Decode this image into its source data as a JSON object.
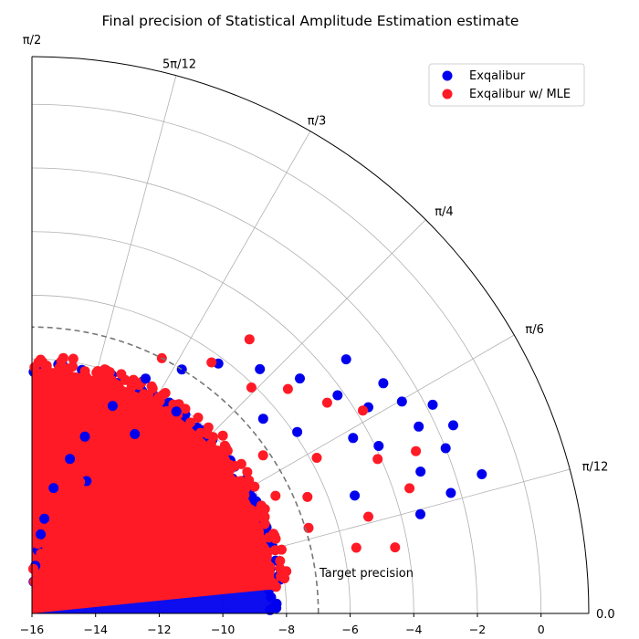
{
  "chart_data": {
    "type": "scatter",
    "projection": "polar-quarter",
    "title": "Final precision of Statistical Amplitude Estimation estimate",
    "radial_axis": {
      "scale": "log10",
      "range": [
        -16,
        1.5
      ],
      "ticks": [
        -16,
        -14,
        -12,
        -10,
        -8,
        -6,
        -4,
        -2,
        0
      ],
      "tick_labels": [
        "−16",
        "−14",
        "−12",
        "−10",
        "−8",
        "−6",
        "−4",
        "−2",
        "0"
      ]
    },
    "angular_axis": {
      "range_radians": [
        0,
        1.5708
      ],
      "tick_labels": [
        "0.0",
        "π/12",
        "π/6",
        "π/4",
        "π/3",
        "5π/12",
        "π/2"
      ]
    },
    "grid": true,
    "legend": {
      "placement": "top-right",
      "entries": [
        "Exqalibur",
        "Exqalibur w/ MLE"
      ]
    },
    "annotation": {
      "text": "Target precision",
      "radius": -7
    },
    "series": [
      {
        "name": "Exqalibur",
        "color": "#0000ee",
        "dense_region": {
          "r_range": [
            -16,
            -8.5
          ],
          "theta_range_radians": [
            0,
            1.5708
          ]
        },
        "scattered_points": [
          {
            "r": -3.0,
            "theta": 0.35
          },
          {
            "r": -2.5,
            "theta": 0.45
          },
          {
            "r": -2.0,
            "theta": 0.38
          },
          {
            "r": -1.5,
            "theta": 0.42
          },
          {
            "r": -2.3,
            "theta": 0.28
          },
          {
            "r": -3.6,
            "theta": 0.55
          },
          {
            "r": -4.2,
            "theta": 0.62
          },
          {
            "r": -4.8,
            "theta": 0.72
          },
          {
            "r": -5.5,
            "theta": 0.82
          },
          {
            "r": -2.8,
            "theta": 0.58
          },
          {
            "r": -3.3,
            "theta": 0.68
          },
          {
            "r": -6.2,
            "theta": 0.93
          },
          {
            "r": -7.0,
            "theta": 1.02
          },
          {
            "r": -7.8,
            "theta": 1.12
          },
          {
            "r": -9.0,
            "theta": 1.2
          },
          {
            "r": -10.2,
            "theta": 1.28
          },
          {
            "r": -11.0,
            "theta": 1.33
          },
          {
            "r": -12.0,
            "theta": 1.4
          },
          {
            "r": -13.0,
            "theta": 1.44
          },
          {
            "r": -14.0,
            "theta": 1.48
          },
          {
            "r": -15.0,
            "theta": 1.52
          },
          {
            "r": -14.5,
            "theta": 1.5
          },
          {
            "r": -13.5,
            "theta": 1.46
          },
          {
            "r": -1.2,
            "theta": 0.3
          },
          {
            "r": -1.8,
            "theta": 0.48
          },
          {
            "r": -2.6,
            "theta": 0.52
          },
          {
            "r": -3.9,
            "theta": 0.45
          },
          {
            "r": -4.5,
            "theta": 0.5
          },
          {
            "r": -5.2,
            "theta": 0.35
          },
          {
            "r": -3.4,
            "theta": 0.25
          },
          {
            "r": -6.5,
            "theta": 0.7
          },
          {
            "r": -5.9,
            "theta": 0.6
          },
          {
            "r": -8.2,
            "theta": 0.95
          },
          {
            "r": -9.5,
            "theta": 1.05
          },
          {
            "r": -11.5,
            "theta": 1.18
          }
        ]
      },
      {
        "name": "Exqalibur w/ MLE",
        "color": "#ff1a26",
        "dense_region": {
          "r_range": [
            -16,
            -8.3
          ],
          "theta_range_radians": [
            0.1,
            1.5708
          ]
        },
        "scattered_points": [
          {
            "r": -3.5,
            "theta": 0.32
          },
          {
            "r": -4.1,
            "theta": 0.42
          },
          {
            "r": -5.0,
            "theta": 0.28
          },
          {
            "r": -5.8,
            "theta": 0.5
          },
          {
            "r": -6.6,
            "theta": 0.4
          },
          {
            "r": -4.6,
            "theta": 0.62
          },
          {
            "r": -5.3,
            "theta": 0.72
          },
          {
            "r": -6.1,
            "theta": 0.8
          },
          {
            "r": -7.2,
            "theta": 0.6
          },
          {
            "r": -7.8,
            "theta": 0.75
          },
          {
            "r": -8.5,
            "theta": 0.88
          },
          {
            "r": -9.3,
            "theta": 0.98
          },
          {
            "r": -10.0,
            "theta": 1.08
          },
          {
            "r": -10.8,
            "theta": 1.15
          },
          {
            "r": -11.6,
            "theta": 1.22
          },
          {
            "r": -12.4,
            "theta": 1.3
          },
          {
            "r": -13.2,
            "theta": 1.36
          },
          {
            "r": -14.1,
            "theta": 1.42
          },
          {
            "r": -15.0,
            "theta": 1.5
          },
          {
            "r": -14.6,
            "theta": 1.54
          },
          {
            "r": -13.8,
            "theta": 1.49
          },
          {
            "r": -6.9,
            "theta": 0.3
          },
          {
            "r": -5.6,
            "theta": 0.2
          },
          {
            "r": -4.4,
            "theta": 0.18
          },
          {
            "r": -7.5,
            "theta": 0.45
          },
          {
            "r": -8.0,
            "theta": 0.55
          },
          {
            "r": -6.3,
            "theta": 0.95
          },
          {
            "r": -7.0,
            "theta": 1.1
          },
          {
            "r": -8.8,
            "theta": 1.25
          },
          {
            "r": -9.9,
            "theta": 1.35
          },
          {
            "r": -11.0,
            "theta": 1.42
          },
          {
            "r": -12.2,
            "theta": 1.47
          },
          {
            "r": -3.8,
            "theta": 0.55
          },
          {
            "r": -2.9,
            "theta": 0.4
          },
          {
            "r": -5.0,
            "theta": 0.9
          }
        ]
      }
    ]
  }
}
